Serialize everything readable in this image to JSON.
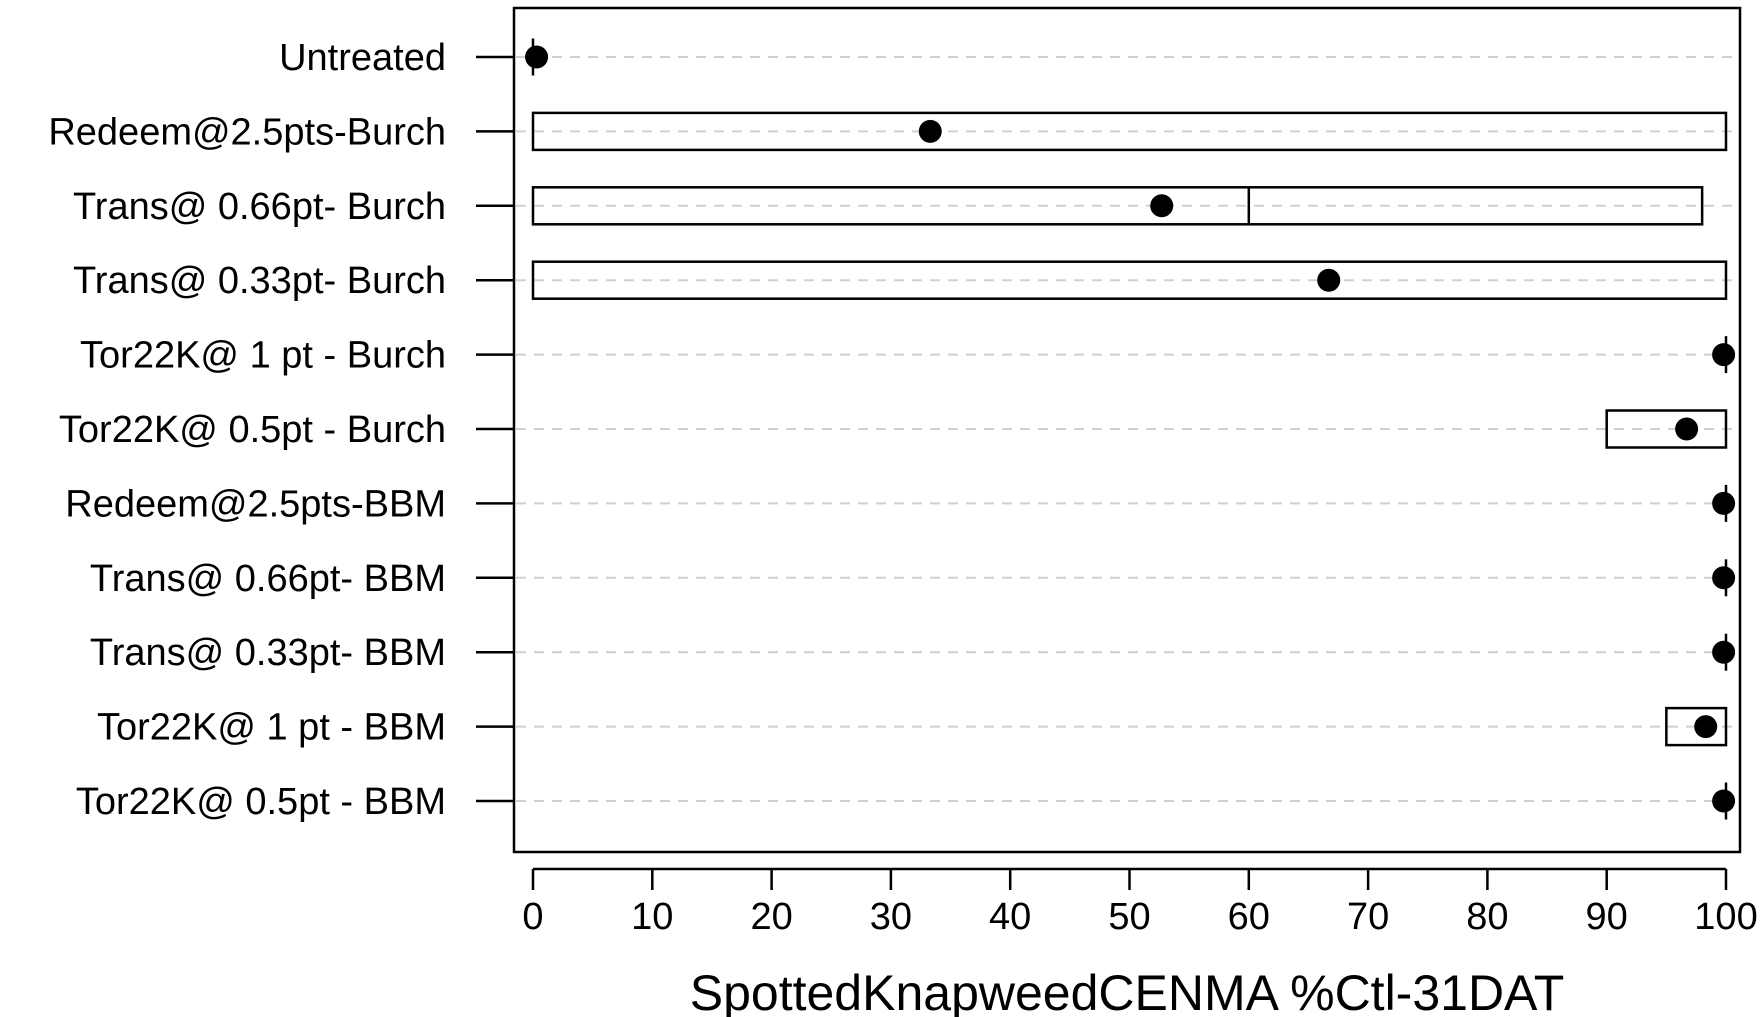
{
  "chart_data": {
    "type": "box",
    "xlabel": "SpottedKnapweedCENMA %Ctl-31DAT",
    "ylabel": "",
    "title": "",
    "xlim": [
      0,
      100
    ],
    "xticks": [
      0,
      10,
      20,
      30,
      40,
      50,
      60,
      70,
      80,
      90,
      100
    ],
    "grid": "dashed horizontal",
    "categories": [
      "Untreated",
      "Redeem@2.5pts-Burch",
      "Trans@ 0.66pt- Burch",
      "Trans@ 0.33pt- Burch",
      "Tor22K@ 1 pt - Burch",
      "Tor22K@ 0.5pt - Burch",
      "Redeem@2.5pts-BBM",
      "Trans@ 0.66pt- BBM",
      "Trans@ 0.33pt- BBM",
      "Tor22K@ 1 pt - BBM",
      "Tor22K@ 0.5pt - BBM"
    ],
    "boxes": [
      {
        "q1": 0,
        "median": 0,
        "q3": 0,
        "mean": 0.3
      },
      {
        "q1": 0,
        "median": null,
        "q3": 100,
        "mean": 33.3
      },
      {
        "q1": 0,
        "median": 60,
        "q3": 98,
        "mean": 52.7
      },
      {
        "q1": 0,
        "median": null,
        "q3": 100,
        "mean": 66.7
      },
      {
        "q1": 100,
        "median": 100,
        "q3": 100,
        "mean": 99.8
      },
      {
        "q1": 90,
        "median": null,
        "q3": 100,
        "mean": 96.7
      },
      {
        "q1": 100,
        "median": 100,
        "q3": 100,
        "mean": 99.8
      },
      {
        "q1": 100,
        "median": 100,
        "q3": 100,
        "mean": 99.8
      },
      {
        "q1": 100,
        "median": 100,
        "q3": 100,
        "mean": 99.8
      },
      {
        "q1": 95,
        "median": null,
        "q3": 100,
        "mean": 98.3
      },
      {
        "q1": 100,
        "median": 100,
        "q3": 100,
        "mean": 99.8
      }
    ],
    "colors": {
      "box_stroke": "#000000",
      "mean_marker": "#000000",
      "grid": "#d0d0d0",
      "frame": "#000000"
    }
  }
}
